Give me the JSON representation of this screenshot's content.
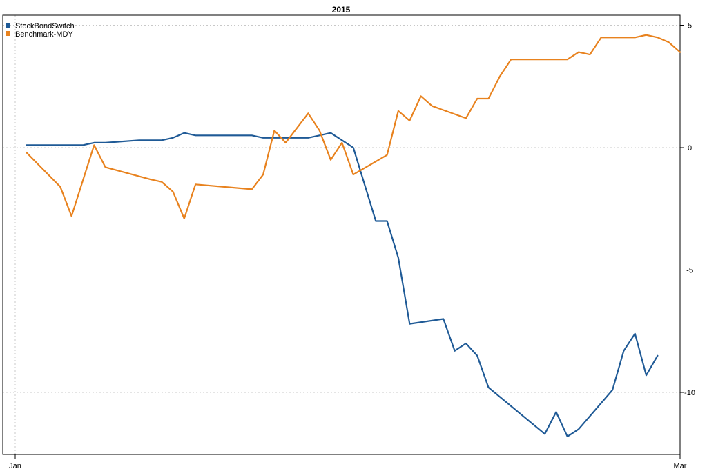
{
  "chart_data": {
    "type": "line",
    "title": "2015",
    "xlabel": "",
    "ylabel": "",
    "x_ticks": [
      "Jan",
      "Mar"
    ],
    "x_range": [
      "2015-01-01",
      "2015-03-01"
    ],
    "y_ticks": [
      5,
      0,
      -5,
      -10
    ],
    "ylim": [
      -12.3,
      5.4
    ],
    "y_axis_side": "right",
    "grid": true,
    "legend": {
      "placement": "top-left"
    },
    "series": [
      {
        "name": "StockBondSwitch",
        "color": "#1f5a96",
        "points": [
          [
            "2015-01-02",
            0.1
          ],
          [
            "2015-01-05",
            0.1
          ],
          [
            "2015-01-06",
            0.1
          ],
          [
            "2015-01-07",
            0.1
          ],
          [
            "2015-01-08",
            0.2
          ],
          [
            "2015-01-09",
            0.2
          ],
          [
            "2015-01-12",
            0.3
          ],
          [
            "2015-01-13",
            0.3
          ],
          [
            "2015-01-14",
            0.3
          ],
          [
            "2015-01-15",
            0.4
          ],
          [
            "2015-01-16",
            0.6
          ],
          [
            "2015-01-17",
            0.5
          ],
          [
            "2015-01-20",
            0.5
          ],
          [
            "2015-01-21",
            0.5
          ],
          [
            "2015-01-22",
            0.5
          ],
          [
            "2015-01-23",
            0.4
          ],
          [
            "2015-01-26",
            0.4
          ],
          [
            "2015-01-27",
            0.4
          ],
          [
            "2015-01-28",
            0.5
          ],
          [
            "2015-01-29",
            0.6
          ],
          [
            "2015-01-30",
            0.3
          ],
          [
            "2015-01-31",
            0.0
          ],
          [
            "2015-02-02",
            -3.0
          ],
          [
            "2015-02-03",
            -3.0
          ],
          [
            "2015-02-04",
            -4.5
          ],
          [
            "2015-02-05",
            -7.2
          ],
          [
            "2015-02-08",
            -7.0
          ],
          [
            "2015-02-09",
            -8.3
          ],
          [
            "2015-02-10",
            -8.0
          ],
          [
            "2015-02-11",
            -8.5
          ],
          [
            "2015-02-12",
            -9.8
          ],
          [
            "2015-02-17",
            -11.7
          ],
          [
            "2015-02-18",
            -10.8
          ],
          [
            "2015-02-19",
            -11.8
          ],
          [
            "2015-02-20",
            -11.5
          ],
          [
            "2015-02-23",
            -9.9
          ],
          [
            "2015-02-24",
            -8.3
          ],
          [
            "2015-02-25",
            -7.6
          ],
          [
            "2015-02-26",
            -9.3
          ],
          [
            "2015-02-27",
            -8.5
          ]
        ]
      },
      {
        "name": "Benchmark-MDY",
        "color": "#e8821e",
        "points": [
          [
            "2015-01-02",
            -0.2
          ],
          [
            "2015-01-05",
            -1.6
          ],
          [
            "2015-01-06",
            -2.8
          ],
          [
            "2015-01-08",
            0.1
          ],
          [
            "2015-01-09",
            -0.8
          ],
          [
            "2015-01-13",
            -1.3
          ],
          [
            "2015-01-14",
            -1.4
          ],
          [
            "2015-01-15",
            -1.8
          ],
          [
            "2015-01-16",
            -2.9
          ],
          [
            "2015-01-17",
            -1.5
          ],
          [
            "2015-01-22",
            -1.7
          ],
          [
            "2015-01-23",
            -1.1
          ],
          [
            "2015-01-24",
            0.7
          ],
          [
            "2015-01-25",
            0.2
          ],
          [
            "2015-01-27",
            1.4
          ],
          [
            "2015-01-28",
            0.7
          ],
          [
            "2015-01-29",
            -0.5
          ],
          [
            "2015-01-30",
            0.2
          ],
          [
            "2015-01-31",
            -1.1
          ],
          [
            "2015-02-03",
            -0.3
          ],
          [
            "2015-02-04",
            1.5
          ],
          [
            "2015-02-05",
            1.1
          ],
          [
            "2015-02-06",
            2.1
          ],
          [
            "2015-02-07",
            1.7
          ],
          [
            "2015-02-10",
            1.2
          ],
          [
            "2015-02-11",
            2.0
          ],
          [
            "2015-02-12",
            2.0
          ],
          [
            "2015-02-13",
            2.9
          ],
          [
            "2015-02-14",
            3.6
          ],
          [
            "2015-02-19",
            3.6
          ],
          [
            "2015-02-20",
            3.9
          ],
          [
            "2015-02-21",
            3.8
          ],
          [
            "2015-02-22",
            4.5
          ],
          [
            "2015-02-25",
            4.5
          ],
          [
            "2015-02-26",
            4.6
          ],
          [
            "2015-02-27",
            4.5
          ],
          [
            "2015-02-28",
            4.3
          ],
          [
            "2015-03-01",
            3.9
          ]
        ]
      }
    ]
  }
}
